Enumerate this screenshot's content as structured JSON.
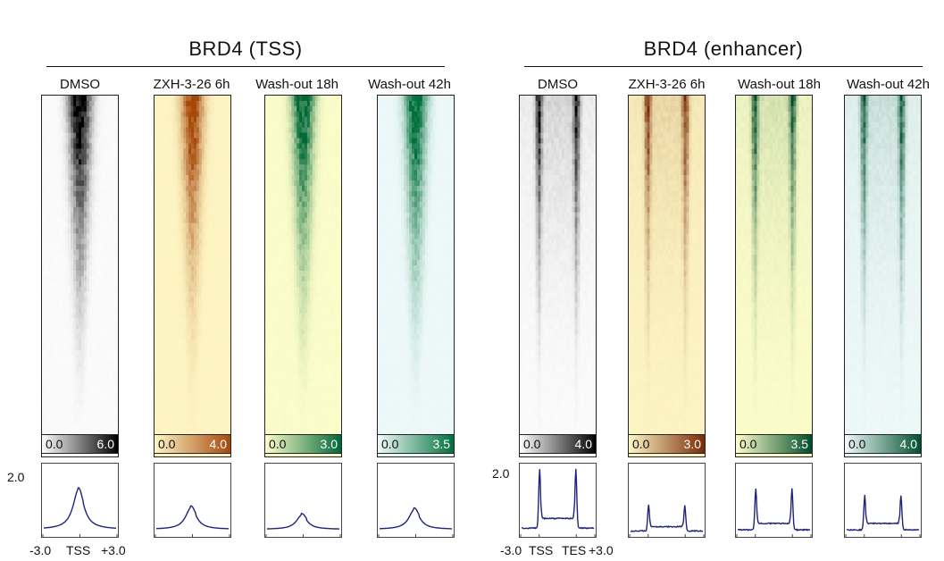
{
  "groups": [
    {
      "title": "BRD4 (TSS)",
      "profile_type": "tss",
      "y_tick_label": "2.0",
      "x_tick_labels": [
        "-3.0",
        "TSS",
        "+3.0"
      ],
      "columns": [
        {
          "label": "DMSO",
          "scale_min": "0.0",
          "scale_max": "6.0",
          "color_lo": "#ffffff",
          "color_hi": "#000000",
          "peak": 1.33
        },
        {
          "label": "ZXH-3-26 6h",
          "scale_min": "0.0",
          "scale_max": "4.0",
          "color_lo": "#fff7c6",
          "color_hi": "#a6480a",
          "peak": 0.78
        },
        {
          "label": "Wash-out 18h",
          "scale_min": "0.0",
          "scale_max": "3.0",
          "color_lo": "#ffffcc",
          "color_hi": "#006837",
          "peak": 0.55
        },
        {
          "label": "Wash-out 42h",
          "scale_min": "0.0",
          "scale_max": "3.5",
          "color_lo": "#f1fbfb",
          "color_hi": "#00703c",
          "peak": 0.72
        }
      ]
    },
    {
      "title": "BRD4 (enhancer)",
      "profile_type": "enhancer",
      "y_tick_label": "2.0",
      "x_tick_labels": [
        "-3.0",
        "TSS",
        "TES",
        "+3.0"
      ],
      "columns": [
        {
          "label": "DMSO",
          "scale_min": "0.0",
          "scale_max": "4.0",
          "color_lo": "#ffffff",
          "color_hi": "#000000",
          "peak": 1.95,
          "base": 0.45
        },
        {
          "label": "ZXH-3-26 6h",
          "scale_min": "0.0",
          "scale_max": "3.0",
          "color_lo": "#fff7c6",
          "color_hi": "#7a2a05",
          "peak": 0.85,
          "base": 0.2
        },
        {
          "label": "Wash-out 18h",
          "scale_min": "0.0",
          "scale_max": "3.5",
          "color_lo": "#ffffcc",
          "color_hi": "#004d2a",
          "peak": 1.35,
          "base": 0.3
        },
        {
          "label": "Wash-out 42h",
          "scale_min": "0.0",
          "scale_max": "4.0",
          "color_lo": "#f1fbfb",
          "color_hi": "#00512f",
          "peak": 1.15,
          "base": 0.3
        }
      ]
    }
  ],
  "chart_data": {
    "type": "heatmap",
    "y_axis_max": 2.0,
    "profile_color": "#1f237a"
  }
}
